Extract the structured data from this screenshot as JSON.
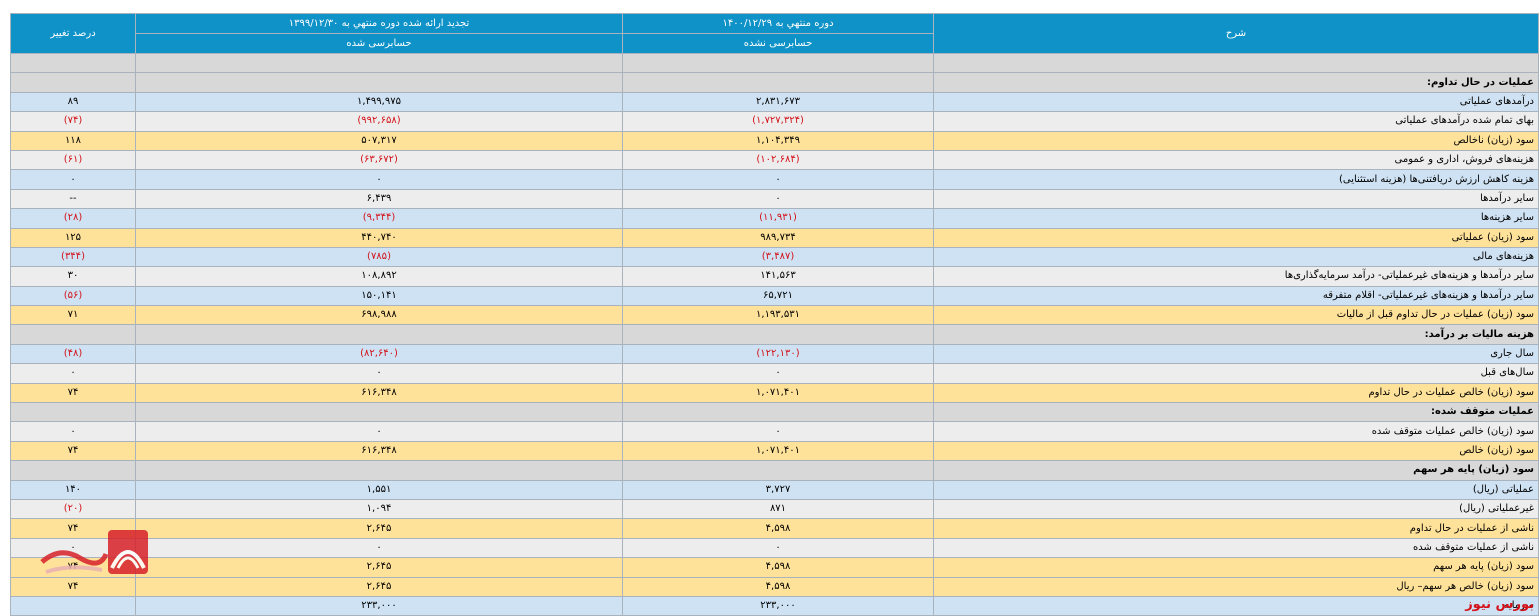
{
  "header": {
    "col_desc": "شرح",
    "col_current": "دوره منتهي به ۱۴۰۰/۱۲/۲۹",
    "col_current_sub": "حسابرسی نشده",
    "col_prev": "تجدید ارائه شده دوره منتهي به ۱۳۹۹/۱۲/۳۰",
    "col_prev_sub": "حسابرسی شده",
    "col_pct": "درصد تغییر"
  },
  "rows": [
    {
      "type": "sec",
      "label": "",
      "cur": "",
      "prev": "",
      "pct": ""
    },
    {
      "type": "sec",
      "label": "عملیات در حال تداوم:",
      "cur": "",
      "prev": "",
      "pct": ""
    },
    {
      "type": "blue",
      "label": "درآمدهای عملیاتی",
      "cur": "۲,۸۳۱,۶۷۳",
      "prev": "۱,۴۹۹,۹۷۵",
      "pct": "۸۹"
    },
    {
      "type": "gray",
      "label": "بهای تمام شده درآمدهای عملیاتی",
      "cur": "(۱,۷۲۷,۳۲۴)",
      "prev": "(۹۹۲,۶۵۸)",
      "pct": "(۷۴)",
      "neg": true
    },
    {
      "type": "yel",
      "label": "سود (زیان) ناخالص",
      "cur": "۱,۱۰۴,۳۴۹",
      "prev": "۵۰۷,۳۱۷",
      "pct": "۱۱۸"
    },
    {
      "type": "gray",
      "label": "هزینه‌های فروش، اداری و عمومی",
      "cur": "(۱۰۲,۶۸۴)",
      "prev": "(۶۳,۶۷۲)",
      "pct": "(۶۱)",
      "neg": true
    },
    {
      "type": "blue",
      "label": "هزینه کاهش ارزش دریافتنی‌ها (هزینه استثنایی)",
      "cur": "۰",
      "prev": "۰",
      "pct": "۰"
    },
    {
      "type": "gray",
      "label": "سایر درآمدها",
      "cur": "۰",
      "prev": "۶,۴۳۹",
      "pct": "--"
    },
    {
      "type": "blue",
      "label": "سایر هزینه‌ها",
      "cur": "(۱۱,۹۳۱)",
      "prev": "(۹,۳۴۴)",
      "pct": "(۲۸)",
      "neg": true
    },
    {
      "type": "yel",
      "label": "سود (زیان) عملیاتی",
      "cur": "۹۸۹,۷۳۴",
      "prev": "۴۴۰,۷۴۰",
      "pct": "۱۲۵"
    },
    {
      "type": "blue",
      "label": "هزینه‌های مالی",
      "cur": "(۳,۴۸۷)",
      "prev": "(۷۸۵)",
      "pct": "(۳۴۴)",
      "neg": true
    },
    {
      "type": "gray",
      "label": "سایر درآمدها و هزینه‌های غیرعملیاتی- درآمد سرمایه‌گذاری‌ها",
      "cur": "۱۴۱,۵۶۳",
      "prev": "۱۰۸,۸۹۲",
      "pct": "۳۰"
    },
    {
      "type": "blue",
      "label": "سایر درآمدها و هزینه‌های غیرعملیاتی- اقلام متفرقه",
      "cur": "۶۵,۷۲۱",
      "prev": "۱۵۰,۱۴۱",
      "pct": "(۵۶)",
      "negPct": true
    },
    {
      "type": "yel",
      "label": "سود (زیان) عملیات در حال تداوم قبل از مالیات",
      "cur": "۱,۱۹۳,۵۳۱",
      "prev": "۶۹۸,۹۸۸",
      "pct": "۷۱"
    },
    {
      "type": "sec",
      "label": "هزینه مالیات بر درآمد:",
      "cur": "",
      "prev": "",
      "pct": ""
    },
    {
      "type": "blue",
      "label": "سال جاری",
      "cur": "(۱۲۲,۱۳۰)",
      "prev": "(۸۲,۶۴۰)",
      "pct": "(۴۸)",
      "neg": true
    },
    {
      "type": "gray",
      "label": "سال‌های قبل",
      "cur": "۰",
      "prev": "۰",
      "pct": "۰"
    },
    {
      "type": "yel",
      "label": "سود (زیان) خالص عملیات در حال تداوم",
      "cur": "۱,۰۷۱,۴۰۱",
      "prev": "۶۱۶,۳۴۸",
      "pct": "۷۴"
    },
    {
      "type": "sec",
      "label": "عملیات متوقف شده:",
      "cur": "",
      "prev": "",
      "pct": ""
    },
    {
      "type": "gray",
      "label": "سود (زیان) خالص عملیات متوقف شده",
      "cur": "۰",
      "prev": "۰",
      "pct": "۰"
    },
    {
      "type": "yel",
      "label": "سود (زیان) خالص",
      "cur": "۱,۰۷۱,۴۰۱",
      "prev": "۶۱۶,۳۴۸",
      "pct": "۷۴"
    },
    {
      "type": "sec",
      "label": "سود (زیان) پایه هر سهم",
      "cur": "",
      "prev": "",
      "pct": ""
    },
    {
      "type": "blue",
      "label": "عملیاتی (ریال)",
      "cur": "۳,۷۲۷",
      "prev": "۱,۵۵۱",
      "pct": "۱۴۰"
    },
    {
      "type": "gray",
      "label": "غیرعملیاتی (ریال)",
      "cur": "۸۷۱",
      "prev": "۱,۰۹۴",
      "pct": "(۲۰)",
      "negPct": true
    },
    {
      "type": "yel",
      "label": "ناشی از عملیات در حال تداوم",
      "cur": "۴,۵۹۸",
      "prev": "۲,۶۴۵",
      "pct": "۷۴"
    },
    {
      "type": "gray",
      "label": "ناشی از عملیات متوقف شده",
      "cur": "۰",
      "prev": "۰",
      "pct": "۰"
    },
    {
      "type": "yel",
      "label": "سود (زیان) پایه هر سهم",
      "cur": "۴,۵۹۸",
      "prev": "۲,۶۴۵",
      "pct": "۷۴"
    },
    {
      "type": "yel",
      "label": "سود (زیان) خالص هر سهم– ریال",
      "cur": "۴,۵۹۸",
      "prev": "۲,۶۴۵",
      "pct": "۷۴"
    },
    {
      "type": "last",
      "label": "سرمایه",
      "cur": "۲۳۳,۰۰۰",
      "prev": "۲۳۳,۰۰۰",
      "pct": ""
    }
  ],
  "watermark": {
    "brand": "بورس نیوز"
  }
}
